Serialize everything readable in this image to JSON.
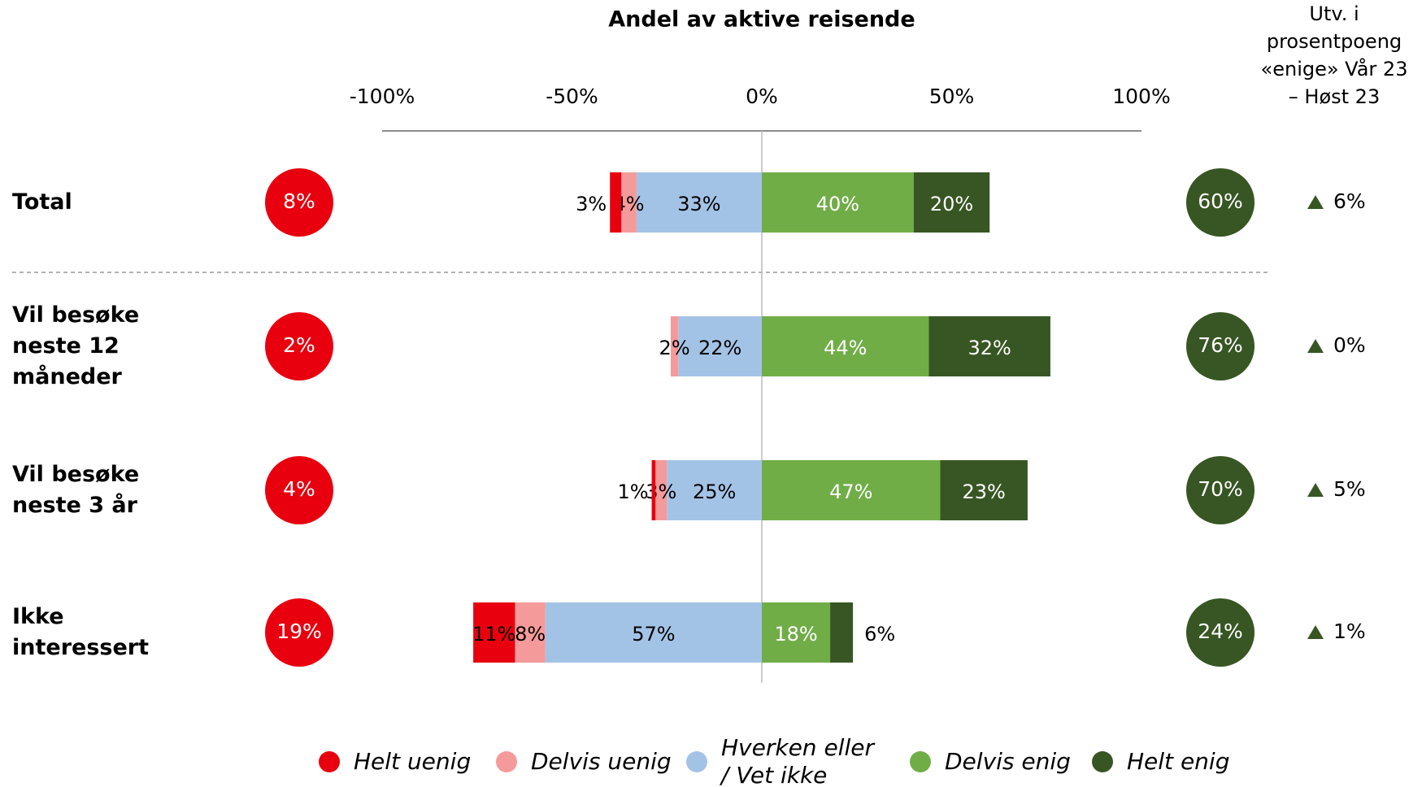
{
  "chart_data": {
    "type": "diverging_bar",
    "title": "Andel av aktive reisende",
    "change_header": [
      "Utv. i",
      "prosentpoeng",
      "«enige» Vår 23",
      "– Høst 23"
    ],
    "categories": [
      "Total",
      "Vil besøke neste 12 måneder",
      "Vil besøke neste 3 år",
      "Ikke interessert"
    ],
    "xlim": [
      -100,
      100
    ],
    "xticks": [
      {
        "value": -100,
        "label": "-100%"
      },
      {
        "value": -50,
        "label": "-50%"
      },
      {
        "value": 0,
        "label": "0%"
      },
      {
        "value": 50,
        "label": "50%"
      },
      {
        "value": 100,
        "label": "100%"
      }
    ],
    "series": [
      {
        "name": "Helt uenig",
        "color": "#e8000f",
        "side": "negative",
        "values": [
          3,
          null,
          1,
          11
        ],
        "value_labels": [
          "3%",
          null,
          "1%",
          "11%"
        ]
      },
      {
        "name": "Delvis uenig",
        "color": "#f59a9a",
        "side": "negative",
        "values": [
          4,
          2,
          3,
          8
        ],
        "value_labels": [
          "4%",
          "2%",
          "3%",
          "8%"
        ]
      },
      {
        "name": "Hverken eller / Vet ikke",
        "color": "#a3c3e6",
        "side": "negative",
        "values": [
          33,
          22,
          25,
          57
        ],
        "value_labels": [
          "33%",
          "22%",
          "25%",
          "57%"
        ]
      },
      {
        "name": "Delvis enig",
        "color": "#70ad47",
        "side": "positive",
        "values": [
          40,
          44,
          47,
          18
        ],
        "value_labels": [
          "40%",
          "44%",
          "47%",
          "18%"
        ]
      },
      {
        "name": "Helt enig",
        "color": "#375623",
        "side": "positive",
        "values": [
          20,
          32,
          23,
          6
        ],
        "value_labels": [
          "20%",
          "32%",
          "23%",
          "6%"
        ]
      }
    ],
    "disagree_total": {
      "color": "#e8000f",
      "values": [
        8,
        2,
        4,
        19
      ],
      "value_labels": [
        "8%",
        "2%",
        "4%",
        "19%"
      ]
    },
    "agree_total": {
      "color": "#375623",
      "values": [
        60,
        76,
        70,
        24
      ],
      "value_labels": [
        "60%",
        "76%",
        "70%",
        "24%"
      ]
    },
    "change": {
      "color": "#375623",
      "values": [
        6,
        0,
        5,
        1
      ],
      "value_labels": [
        "6%",
        "0%",
        "5%",
        "1%"
      ]
    }
  }
}
